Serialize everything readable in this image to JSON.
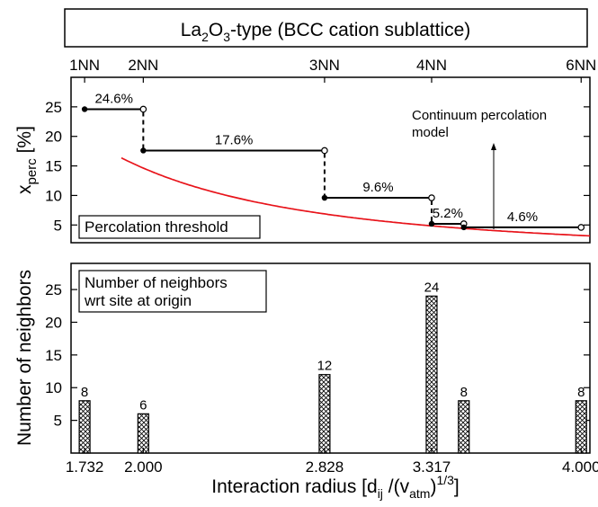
{
  "header": {
    "title_pre": "La",
    "title_sub1": "2",
    "title_mid": "O",
    "title_sub2": "3",
    "title_post": "-type (BCC cation sublattice)"
  },
  "chart_data": [
    {
      "type": "line",
      "x_top_labels": [
        {
          "x": 1.732,
          "label": "1NN"
        },
        {
          "x": 2.0,
          "label": "2NN"
        },
        {
          "x": 2.828,
          "label": "3NN"
        },
        {
          "x": 3.317,
          "label": "4NN"
        },
        {
          "x": 4.0,
          "label": "6NN"
        }
      ],
      "ylabel_main": "x",
      "ylabel_sub": "perc",
      "ylabel_unit": "[%]",
      "xlim": [
        1.67,
        4.04
      ],
      "ylim": [
        2,
        30
      ],
      "yticks": [
        5,
        10,
        15,
        20,
        25
      ],
      "steps": [
        {
          "x_start": 1.732,
          "x_end": 2.0,
          "y": 24.6,
          "label": "24.6%"
        },
        {
          "x_start": 2.0,
          "x_end": 2.828,
          "y": 17.6,
          "label": "17.6%"
        },
        {
          "x_start": 2.828,
          "x_end": 3.317,
          "y": 9.6,
          "label": "9.6%"
        },
        {
          "x_start": 3.317,
          "x_end": 3.464,
          "y": 5.2,
          "label": "5.2%"
        },
        {
          "x_start": 3.464,
          "x_end": 4.0,
          "y": 4.6,
          "label": "4.6%"
        }
      ],
      "continuum_curve": {
        "name": "Continuum percolation model",
        "color": "#e8141b",
        "model": "y = 66.3 / x^2.18"
      },
      "annotations": {
        "continuum_line1": "Continuum percolation",
        "continuum_line2": "model",
        "box_label": "Percolation threshold"
      }
    },
    {
      "type": "bar",
      "ylabel": "Number of neighbors",
      "xlabel_main": "Interaction radius [d",
      "xlabel_sub": "ij",
      "xlabel_mid": " /(v",
      "xlabel_sub2": "atm",
      "xlabel_end": ")",
      "xlabel_sup": "1/3",
      "xlabel_close": "]",
      "xlim": [
        1.67,
        4.04
      ],
      "ylim": [
        0,
        29
      ],
      "yticks": [
        5,
        10,
        15,
        20,
        25
      ],
      "x_tick_labels": [
        "1.732",
        "2.000",
        "2.828",
        "3.317",
        "4.000"
      ],
      "x_tick_values": [
        1.732,
        2.0,
        2.828,
        3.317,
        4.0
      ],
      "bars": [
        {
          "x": 1.732,
          "value": 8,
          "label": "8"
        },
        {
          "x": 2.0,
          "value": 6,
          "label": "6"
        },
        {
          "x": 2.828,
          "value": 12,
          "label": "12"
        },
        {
          "x": 3.317,
          "value": 24,
          "label": "24"
        },
        {
          "x": 3.464,
          "value": 8,
          "label": "8"
        },
        {
          "x": 4.0,
          "value": 8,
          "label": "8"
        }
      ],
      "annotations": {
        "box_line1": "Number of neighbors",
        "box_line2": "wrt site at origin"
      }
    }
  ]
}
